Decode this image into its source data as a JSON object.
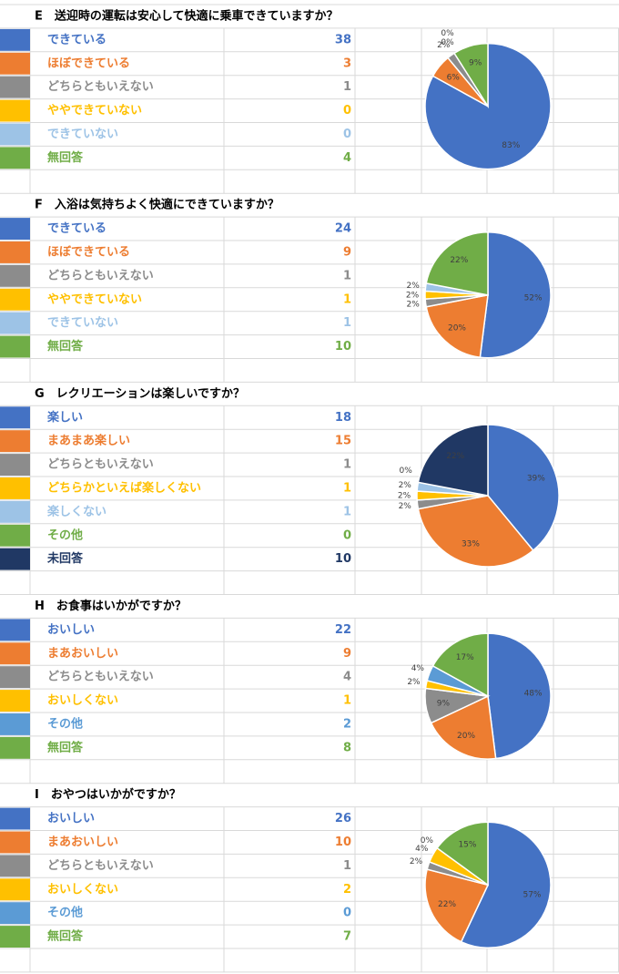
{
  "chart_data": [
    {
      "type": "pie",
      "title": "E　送迎時の運転は安心して快適に乗車できていますか？",
      "categories": [
        "できている",
        "ほぼできている",
        "どちらともいえない",
        "ややできていない",
        "できていない",
        "無回答"
      ],
      "counts": [
        38,
        3,
        1,
        0,
        0,
        4
      ],
      "values": [
        83,
        6,
        2,
        0,
        0,
        9
      ],
      "value_labels": [
        "83%",
        "6%",
        "2%",
        "0%",
        "0%",
        "9%"
      ],
      "colors": [
        "#4472c4",
        "#ed7d31",
        "#8c8c8c",
        "#ffc000",
        "#9dc3e6",
        "#70ad47"
      ]
    },
    {
      "type": "pie",
      "title": "F　入浴は気持ちよく快適にできていますか？",
      "categories": [
        "できている",
        "ほぼできている",
        "どちらともいえない",
        "ややできていない",
        "できていない",
        "無回答"
      ],
      "counts": [
        24,
        9,
        1,
        1,
        1,
        10
      ],
      "values": [
        52,
        20,
        2,
        2,
        2,
        22
      ],
      "value_labels": [
        "52%",
        "20%",
        "2%",
        "2%",
        "2%",
        "22%"
      ],
      "colors": [
        "#4472c4",
        "#ed7d31",
        "#8c8c8c",
        "#ffc000",
        "#9dc3e6",
        "#70ad47"
      ]
    },
    {
      "type": "pie",
      "title": "G　レクリエーションは楽しいですか？",
      "categories": [
        "楽しい",
        "まあまあ楽しい",
        "どちらともいえない",
        "どちらかといえば楽しくない",
        "楽しくない",
        "その他",
        "未回答"
      ],
      "counts": [
        18,
        15,
        1,
        1,
        1,
        0,
        10
      ],
      "values": [
        39,
        33,
        2,
        2,
        2,
        0,
        22
      ],
      "value_labels": [
        "39%",
        "33%",
        "2%",
        "2%",
        "2%",
        "0%",
        "22%"
      ],
      "colors": [
        "#4472c4",
        "#ed7d31",
        "#8c8c8c",
        "#ffc000",
        "#9dc3e6",
        "#70ad47",
        "#203864"
      ]
    },
    {
      "type": "pie",
      "title": "H　お食事はいかがですか？",
      "categories": [
        "おいしい",
        "まあおいしい",
        "どちらともいえない",
        "おいしくない",
        "その他",
        "無回答"
      ],
      "counts": [
        22,
        9,
        4,
        1,
        2,
        8
      ],
      "values": [
        48,
        20,
        9,
        2,
        4,
        17
      ],
      "value_labels": [
        "48%",
        "20%",
        "9%",
        "2%",
        "4%",
        "17%"
      ],
      "colors": [
        "#4472c4",
        "#ed7d31",
        "#8c8c8c",
        "#ffc000",
        "#5b9bd5",
        "#70ad47"
      ]
    },
    {
      "type": "pie",
      "title": "I　おやつはいかがですか？",
      "categories": [
        "おいしい",
        "まあおいしい",
        "どちらともいえない",
        "おいしくない",
        "その他",
        "無回答"
      ],
      "counts": [
        26,
        10,
        1,
        2,
        0,
        7
      ],
      "values": [
        57,
        22,
        2,
        4,
        0,
        15
      ],
      "value_labels": [
        "57%",
        "22%",
        "2%",
        "4%",
        "0%",
        "15%"
      ],
      "colors": [
        "#4472c4",
        "#ed7d31",
        "#8c8c8c",
        "#ffc000",
        "#5b9bd5",
        "#70ad47"
      ]
    }
  ]
}
